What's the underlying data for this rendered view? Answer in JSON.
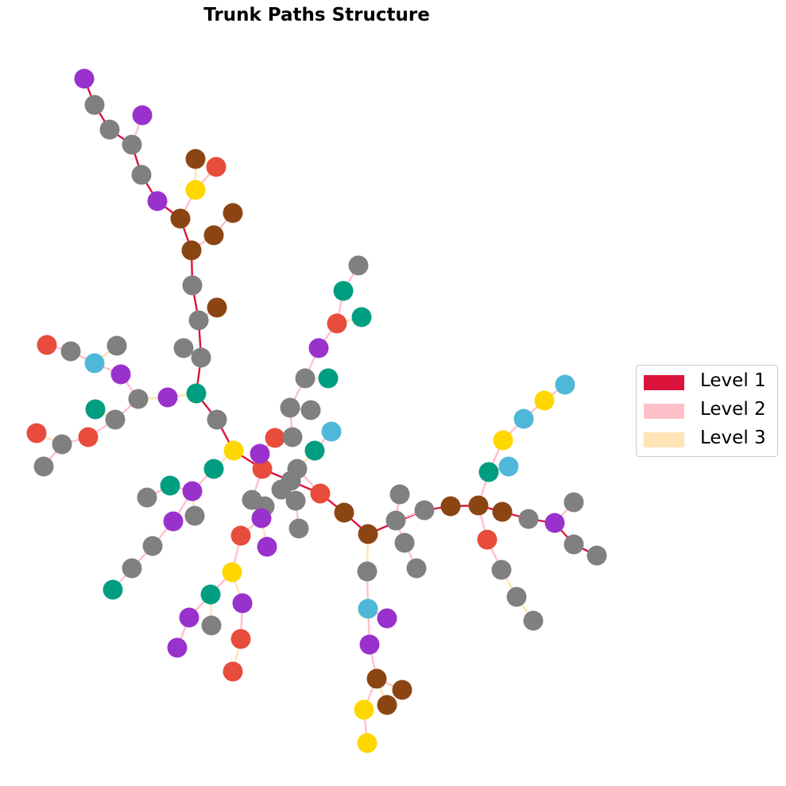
{
  "title": "Trunk Paths Structure",
  "colors": {
    "level1": "#dc143c",
    "level2": "#ffc0cb",
    "level3": "#ffe4b5",
    "purple": "#9932cc",
    "gray": "#808080",
    "brown": "#8b4513",
    "red": "#e74c3c",
    "yellow": "#ffd700",
    "teal": "#009e80",
    "lightblue": "#4fb8d8"
  },
  "legend": [
    {
      "label": "Level 1",
      "color_key": "level1"
    },
    {
      "label": "Level 2",
      "color_key": "level2"
    },
    {
      "label": "Level 3",
      "color_key": "level3"
    }
  ]
}
